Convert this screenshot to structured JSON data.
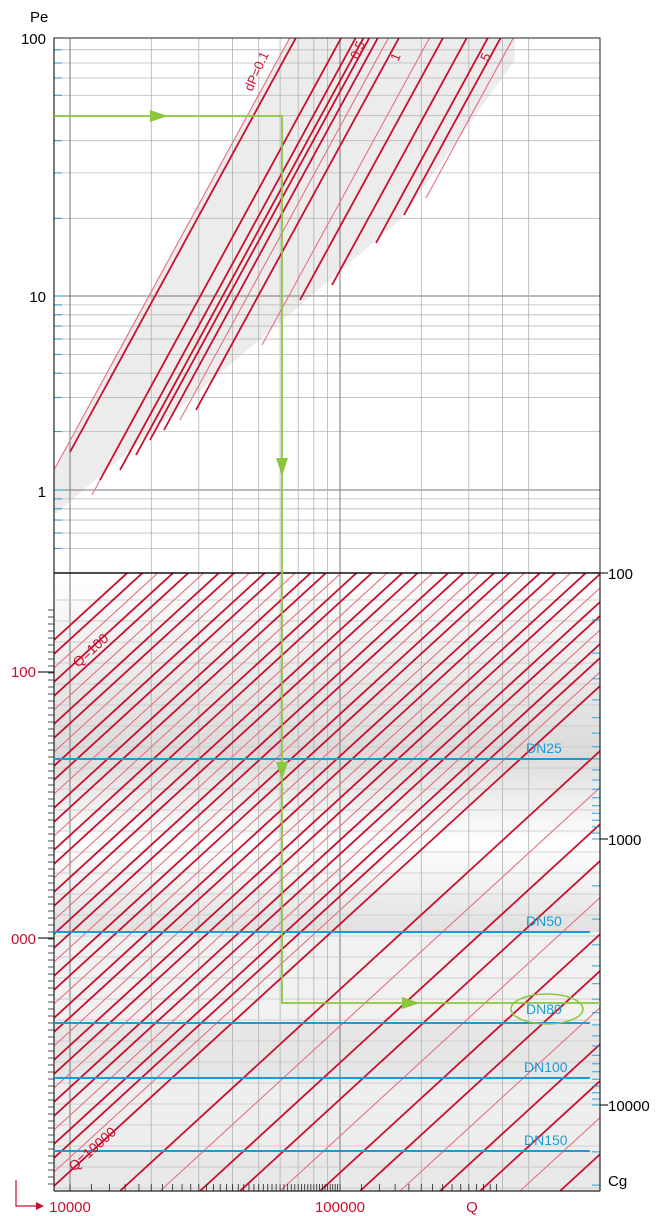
{
  "chart_data": [
    {
      "type": "line",
      "panel": "top",
      "title": "",
      "ylabel": "Pe",
      "yscale": "log",
      "ylim": [
        0.5,
        100
      ],
      "yticks": [
        "1",
        "10",
        "100"
      ],
      "series_labels": [
        "dP=0.1",
        "0.5",
        "1",
        "5"
      ],
      "grid": true,
      "guide_color": "#8cc63f",
      "line_colors": [
        "#c8102e",
        "#e8707e"
      ]
    },
    {
      "type": "line",
      "panel": "bottom",
      "xlabel": "Q",
      "xscale": "log",
      "xticks": [
        "10000",
        "100000"
      ],
      "y_left_ticks": [
        "100",
        "000"
      ],
      "y_right_label": "Cg",
      "y_right_scale": "log",
      "y_right_ticks": [
        "100",
        "1000",
        "10000"
      ],
      "diagonal_labels": [
        "Q=100",
        "Q=10000"
      ],
      "nominal_diameters": [
        "DN25",
        "DN50",
        "DN80",
        "DN100",
        "DN150"
      ],
      "highlighted": "DN80",
      "dn_color": "#1a9ad6",
      "guide_color": "#8cc63f"
    }
  ]
}
